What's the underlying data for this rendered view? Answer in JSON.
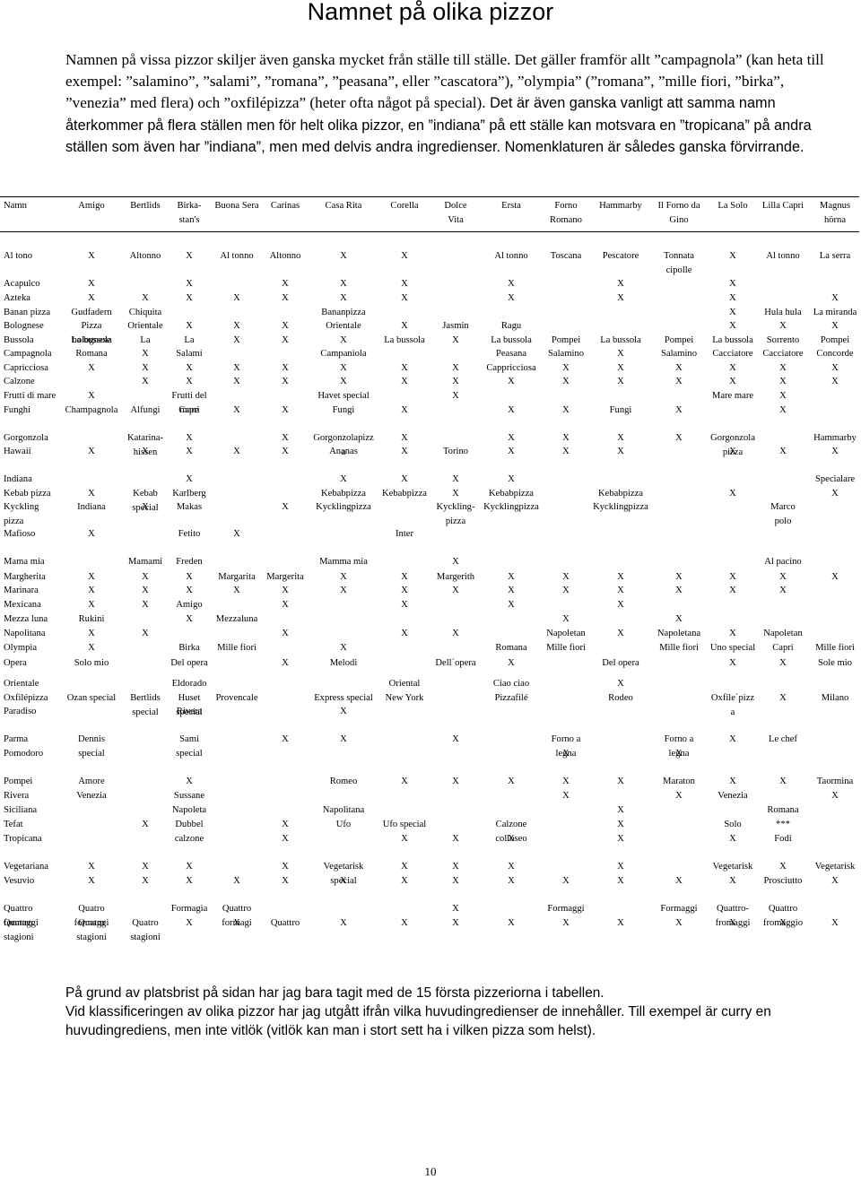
{
  "title": "Namnet på olika pizzor",
  "intro": {
    "part1": "Namnen på vissa pizzor skiljer även ganska mycket från ställe till ställe. Det gäller framför allt ”campagnola” (kan heta till exempel: ”salamino”, ”salami”, ”romana”, ”peasana”, eller ”cascatora”), ”olympia” (”romana”, ”mille fiori, ”birka”, ”venezia” med flera) och ”oxfilépizza” (heter ofta något på special).",
    "part2": "Det är även ganska vanligt att samma namn återkommer på flera ställen men för helt olika pizzor, en ”indiana” på ett ställe kan motsvara en ”tropicana” på andra ställen som även har ”indiana”, men med delvis andra ingredienser. Nomenklaturen är således ganska förvirrande."
  },
  "table": {
    "columns": [
      "Namn",
      "Amigo",
      "Bertlids",
      "Birka-\nstan's",
      "Buona Sera",
      "Carinas",
      "Casa Rita",
      "Corella",
      "Dolce\nVita",
      "Ersta",
      "Forno\nRomano",
      "Hammarby",
      "Il Forno da\nGino",
      "La Solo",
      "Lilla Capri",
      "Magnus\nhörna"
    ],
    "rows": [
      [
        "Al tono",
        "X",
        "Altonno",
        "X",
        "Al tonno",
        "Altonno",
        "X",
        "X",
        "",
        "Al tonno",
        "Toscana",
        "Pescatore",
        "Tonnata\ncipolle",
        "X",
        "Al tonno",
        "La serra"
      ],
      [
        "Acapulco",
        "X",
        "",
        "X",
        "",
        "X",
        "X",
        "X",
        "",
        "X",
        "",
        "X",
        "",
        "X",
        "",
        ""
      ],
      [
        "Azteka",
        "X",
        "X",
        "X",
        "X",
        "X",
        "X",
        "X",
        "",
        "X",
        "",
        "X",
        "",
        "X",
        "",
        "X"
      ],
      [
        "Banan pizza",
        "Gudfadern",
        "Chiquita",
        "",
        "",
        "",
        "Bananpizza",
        "",
        "",
        "",
        "",
        "",
        "",
        "X",
        "Hula hula",
        "La miranda"
      ],
      [
        "Bolognese",
        "Pizza\nbolognese",
        "Orientale",
        "X",
        "X",
        "X",
        "Orientale",
        "X",
        "Jasmin",
        "Ragu",
        "",
        "",
        "",
        "X",
        "X",
        "X"
      ],
      [
        "Bussola",
        "La bussola",
        "La",
        "La",
        "X",
        "X",
        "X",
        "La bussola",
        "X",
        "La bussola",
        "Pompei",
        "La bussola",
        "Pompei",
        "La bussola",
        "Sorrento",
        "Pompei"
      ],
      [
        "Campagnola",
        "Romana",
        "X",
        "Salami",
        "",
        "",
        "Campaniola",
        "",
        "",
        "Peasana",
        "Salamino",
        "X",
        "Salamino",
        "Cacciatore",
        "Cacciatore",
        "Concorde"
      ],
      [
        "Capricciosa",
        "X",
        "X",
        "X",
        "X",
        "X",
        "X",
        "X",
        "X",
        "Cappricciosa",
        "X",
        "X",
        "X",
        "X",
        "X",
        "X"
      ],
      [
        "Calzone",
        "",
        "X",
        "X",
        "X",
        "X",
        "X",
        "X",
        "X",
        "X",
        "X",
        "X",
        "X",
        "X",
        "X",
        "X"
      ],
      [
        "Frutti di mare",
        "X",
        "",
        "Frutti del\nmare",
        "",
        "",
        "Havet special",
        "",
        "X",
        "",
        "",
        "",
        "",
        "Mare mare",
        "X",
        ""
      ],
      [
        "Funghi",
        "Champagnola",
        "Alfungi",
        "Capri",
        "X",
        "X",
        "Fungi",
        "X",
        "",
        "X",
        "X",
        "Fungi",
        "X",
        "",
        "X",
        ""
      ],
      [
        "Gorgonzola",
        "",
        "Katarina-\nhissen",
        "X",
        "",
        "X",
        "Gorgonzolapizz\na",
        "X",
        "",
        "X",
        "X",
        "X",
        "X",
        "Gorgonzola\npizza",
        "",
        "Hammarby"
      ],
      [
        "Hawaii",
        "X",
        "X",
        "X",
        "X",
        "X",
        "Ananas",
        "X",
        "Torino",
        "X",
        "X",
        "X",
        "",
        "X",
        "X",
        "X"
      ],
      [
        "Indiana",
        "",
        "",
        "X",
        "",
        "",
        "X",
        "X",
        "X",
        "X",
        "",
        "",
        "",
        "",
        "",
        "Specialare"
      ],
      [
        "Kebab pizza",
        "X",
        "Kebab\nspecial",
        "Karlberg",
        "",
        "",
        "Kebabpizza",
        "Kebabpizza",
        "X",
        "Kebabpizza",
        "",
        "Kebabpizza",
        "",
        "X",
        "",
        "X"
      ],
      [
        "Kyckling\npizza",
        "Indiana",
        "X",
        "Makas",
        "",
        "X",
        "Kycklingpizza",
        "",
        "Kyckling-\npizza",
        "Kycklingpizza",
        "",
        "Kycklingpizza",
        "",
        "",
        "Marco\npolo",
        ""
      ],
      [
        "Mafioso",
        "X",
        "",
        "Fetito",
        "X",
        "",
        "",
        "Inter",
        "",
        "",
        "",
        "",
        "",
        "",
        "",
        ""
      ],
      [
        "Mama mia",
        "",
        "Mamami",
        "Freden",
        "",
        "",
        "Mamma mia",
        "",
        "X",
        "",
        "",
        "",
        "",
        "",
        "Al pacino",
        ""
      ],
      [
        "Margherita",
        "X",
        "X",
        "X",
        "Margarita",
        "Margerita",
        "X",
        "X",
        "Margerith",
        "X",
        "X",
        "X",
        "X",
        "X",
        "X",
        "X"
      ],
      [
        "Marinara",
        "X",
        "X",
        "X",
        "X",
        "X",
        "X",
        "X",
        "X",
        "X",
        "X",
        "X",
        "X",
        "X",
        "X",
        ""
      ],
      [
        "Mexicana",
        "X",
        "X",
        "Amigo",
        "",
        "X",
        "",
        "X",
        "",
        "X",
        "",
        "X",
        "",
        "",
        "",
        ""
      ],
      [
        "Mezza luna",
        "Rukini",
        "",
        "X",
        "Mezzaluna",
        "",
        "",
        "",
        "",
        "",
        "X",
        "",
        "X",
        "",
        "",
        ""
      ],
      [
        "Napolitana",
        "X",
        "X",
        "",
        "",
        "X",
        "",
        "X",
        "X",
        "",
        "Napoletan",
        "X",
        "Napoletana",
        "X",
        "Napoletan",
        ""
      ],
      [
        "Olympia",
        "X",
        "",
        "Birka",
        "Mille fiori",
        "",
        "X",
        "",
        "",
        "Romana",
        "Mille fiori",
        "",
        "Mille fiori",
        "Uno special",
        "Capri",
        "Mille fiori"
      ],
      [
        "Opera",
        "Solo mio",
        "",
        "Del opera",
        "",
        "X",
        "Melodi",
        "",
        "Dell´opera",
        "X",
        "",
        "Del opera",
        "",
        "X",
        "X",
        "Sole mio"
      ],
      [
        "Orientale",
        "",
        "",
        "Eldorado",
        "",
        "",
        "",
        "Oriental",
        "",
        "Ciao ciao",
        "",
        "X",
        "",
        "",
        "",
        ""
      ],
      [
        "Oxfilépizza",
        "Ozan special",
        "Bertlids\nspecial",
        "Huset\nspecial",
        "Provencale",
        "",
        "Express special",
        "New York",
        "",
        "Pizzafilé",
        "",
        "Rodeo",
        "",
        "Oxfile´pizz\na",
        "X",
        "Milano"
      ],
      [
        "Paradiso",
        "",
        "",
        "Rivera",
        "",
        "",
        "X",
        "",
        "",
        "",
        "",
        "",
        "",
        "",
        "",
        ""
      ],
      [
        "Parma",
        "Dennis\nspecial",
        "",
        "Sami\nspecial",
        "",
        "X",
        "X",
        "",
        "X",
        "",
        "Forno a\nlegna",
        "",
        "Forno a\nlegna",
        "X",
        "Le chef",
        ""
      ],
      [
        "Pomodoro",
        "",
        "",
        "",
        "",
        "",
        "",
        "",
        "",
        "",
        "X",
        "",
        "X",
        "",
        "",
        ""
      ],
      [
        "Pompei",
        "Amore",
        "",
        "X",
        "",
        "",
        "Romeo",
        "X",
        "X",
        "X",
        "X",
        "X",
        "Maraton",
        "X",
        "X",
        "Taormina"
      ],
      [
        "Rivera",
        "Venezia",
        "",
        "Sussane",
        "",
        "",
        "",
        "",
        "",
        "",
        "X",
        "",
        "X",
        "Venezia",
        "",
        "X"
      ],
      [
        "Siciliana",
        "",
        "",
        "Napoleta",
        "",
        "",
        "Napolitana",
        "",
        "",
        "",
        "",
        "X",
        "",
        "",
        "Romana",
        ""
      ],
      [
        "Tefat",
        "",
        "X",
        "Dubbel\ncalzone",
        "",
        "X",
        "Ufo",
        "Ufo special",
        "",
        "Calzone\ncolloseo",
        "",
        "X",
        "",
        "Solo",
        "***",
        ""
      ],
      [
        "Tropicana",
        "",
        "",
        "",
        "",
        "X",
        "",
        "X",
        "X",
        "X",
        "",
        "X",
        "",
        "X",
        "Fodi",
        ""
      ],
      [
        "Vegetariana",
        "X",
        "X",
        "X",
        "",
        "X",
        "Vegetarisk\nspecial",
        "X",
        "X",
        "X",
        "",
        "X",
        "",
        "Vegetarisk",
        "X",
        "Vegetarisk"
      ],
      [
        "Vesuvio",
        "X",
        "X",
        "X",
        "X",
        "X",
        "X",
        "X",
        "X",
        "X",
        "X",
        "X",
        "X",
        "X",
        "Prosciutto",
        "X"
      ],
      [
        "Quattro\nformaggi",
        "Quatro\nformaggi",
        "",
        "Formagia",
        "Quattro\nformagi",
        "",
        "",
        "",
        "X",
        "",
        "Formaggi",
        "",
        "Formaggi",
        "Quattro-\nfromaggi",
        "Quattro\nfromaggio",
        ""
      ],
      [
        "Quattro\nstagioni",
        "Quatro\nstagioni",
        "Quatro\nstagioni",
        "X",
        "X",
        "Quattro",
        "X",
        "X",
        "X",
        "X",
        "X",
        "X",
        "X",
        "X",
        "X",
        "X"
      ]
    ]
  },
  "footer": {
    "line1": "På grund av platsbrist på sidan har jag bara tagit med de 15 första pizzeriorna i tabellen.",
    "line2": "Vid klassificeringen av olika pizzor har jag utgått ifrån vilka huvudingredienser de innehåller. Till exempel är curry en huvudingrediens, men inte vitlök (vitlök kan man i stort sett ha i vilken pizza som helst)."
  },
  "page_number": "10"
}
